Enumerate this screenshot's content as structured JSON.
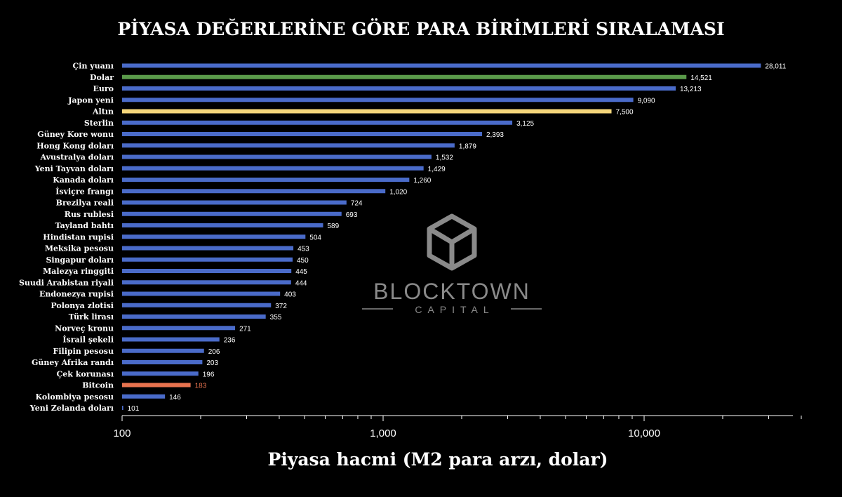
{
  "chart_data": {
    "type": "bar",
    "orientation": "horizontal",
    "title": "PİYASA DEĞERLERİNE GÖRE PARA BİRİMLERİ SIRALAMASI",
    "xlabel": "Piyasa hacmi (M2 para arzı, dolar)",
    "ylabel": "",
    "xscale": "log",
    "xlim": [
      100,
      40000
    ],
    "xticks": [
      100,
      1000,
      10000
    ],
    "xtick_labels": [
      "100",
      "1,000",
      "10,000"
    ],
    "bar_color_default": "#4a6bc9",
    "categories": [
      "Çin yuanı",
      "Dolar",
      "Euro",
      "Japon yeni",
      "Altın",
      "Sterlin",
      "Güney Kore wonu",
      "Hong Kong doları",
      "Avustralya doları",
      "Yeni Tayvan doları",
      "Kanada doları",
      "İsviçre frangı",
      "Brezilya reali",
      "Rus rublesi",
      "Tayland bahtı",
      "Hindistan rupisi",
      "Meksika pesosu",
      "Singapur doları",
      "Malezya ringgiti",
      "Suudi Arabistan riyali",
      "Endonezya rupisi",
      "Polonya zlotisi",
      "Türk lirası",
      "Norveç kronu",
      "İsrail şekeli",
      "Filipin pesosu",
      "Güney Afrika randı",
      "Çek korunası",
      "Bitcoin",
      "Kolombiya pesosu",
      "Yeni Zelanda doları"
    ],
    "values": [
      28011,
      14521,
      13213,
      9090,
      7500,
      3125,
      2393,
      1879,
      1532,
      1429,
      1260,
      1020,
      724,
      693,
      589,
      504,
      453,
      450,
      445,
      444,
      403,
      372,
      355,
      271,
      236,
      206,
      203,
      196,
      183,
      146,
      101
    ],
    "value_labels": [
      "28,011",
      "14,521",
      "13,213",
      "9,090",
      "7,500",
      "3,125",
      "2,393",
      "1,879",
      "1,532",
      "1,429",
      "1,260",
      "1,020",
      "724",
      "693",
      "589",
      "504",
      "453",
      "450",
      "445",
      "444",
      "403",
      "372",
      "355",
      "271",
      "236",
      "206",
      "203",
      "196",
      "183",
      "146",
      "101"
    ],
    "highlights": {
      "Dolar": "#5a9a4a",
      "Altın": "#f5d67a",
      "Bitcoin": "#e8734f"
    },
    "value_label_colors": {
      "Bitcoin": "#e8734f"
    },
    "grid": false,
    "legend": "none"
  },
  "watermark": {
    "logo_icon": "tbc-cube-logo-icon",
    "name": "BLOCKTOWN",
    "sub": "CAPITAL"
  }
}
